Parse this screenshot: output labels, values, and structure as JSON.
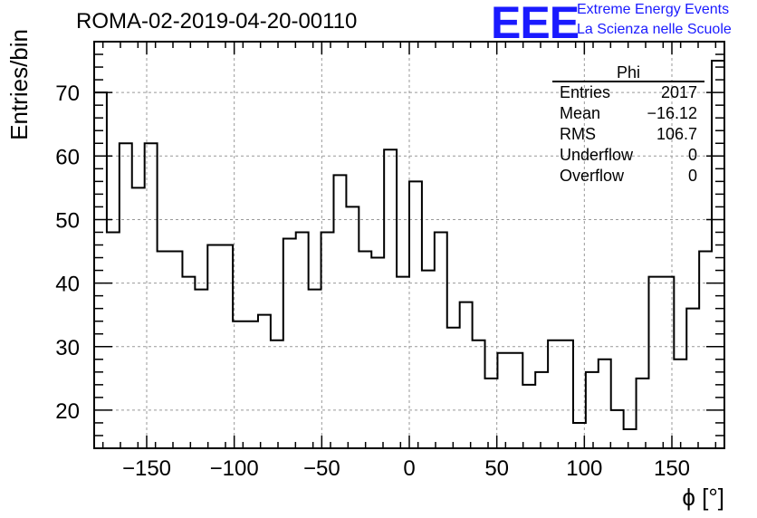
{
  "header": {
    "title": "ROMA-02-2019-04-20-00110",
    "logo_text": "EEE",
    "logo_line1": "Extreme Energy Events",
    "logo_line2": "La Scienza nelle Scuole"
  },
  "stats_box": {
    "title": "Phi",
    "rows": [
      {
        "key": "Entries",
        "value": "2017"
      },
      {
        "key": "Mean",
        "value": "−16.12"
      },
      {
        "key": "RMS",
        "value": "106.7"
      },
      {
        "key": "Underflow",
        "value": "0"
      },
      {
        "key": "Overflow",
        "value": "0"
      }
    ]
  },
  "colors": {
    "line": "#000000",
    "grid": "#999999",
    "logo": "#1a1aff"
  },
  "chart_data": {
    "type": "bar",
    "style": "step-histogram",
    "xlabel": "ϕ [°]",
    "ylabel": "Entries/bin",
    "xlim": [
      -180,
      180
    ],
    "ylim": [
      14,
      78
    ],
    "xticks": [
      -150,
      -100,
      -50,
      0,
      50,
      100,
      150
    ],
    "xtick_labels": [
      "−150",
      "−100",
      "−50",
      "0",
      "50",
      "100",
      "150"
    ],
    "yticks": [
      20,
      30,
      40,
      50,
      60,
      70
    ],
    "grid": true,
    "bin_width": 7.2,
    "bin_edges_start": -180,
    "values": [
      70,
      48,
      62,
      55,
      62,
      45,
      45,
      41,
      39,
      46,
      46,
      34,
      34,
      35,
      31,
      47,
      48,
      39,
      48,
      57,
      52,
      45,
      44,
      61,
      41,
      56,
      42,
      48,
      33,
      37,
      31,
      25,
      29,
      29,
      24,
      26,
      31,
      31,
      18,
      26,
      28,
      20,
      17,
      25,
      41,
      41,
      28,
      36,
      45,
      75
    ]
  }
}
